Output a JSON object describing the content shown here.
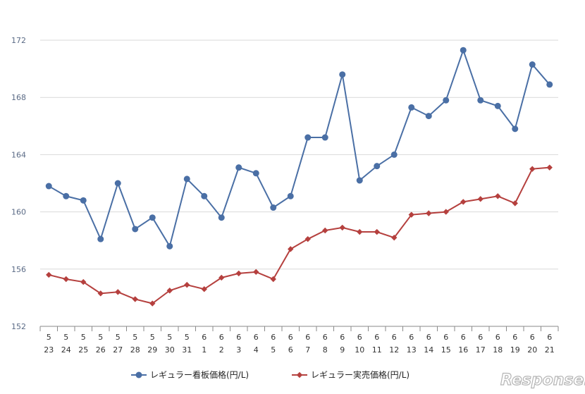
{
  "chart_data": {
    "type": "line",
    "title": "",
    "xlabel": "",
    "ylabel": "",
    "ylim": [
      152,
      172
    ],
    "yticks": [
      152,
      156,
      160,
      164,
      168,
      172
    ],
    "grid": true,
    "legend_position": "bottom",
    "x": [
      {
        "month": "5",
        "day": "23"
      },
      {
        "month": "5",
        "day": "24"
      },
      {
        "month": "5",
        "day": "25"
      },
      {
        "month": "5",
        "day": "26"
      },
      {
        "month": "5",
        "day": "27"
      },
      {
        "month": "5",
        "day": "28"
      },
      {
        "month": "5",
        "day": "29"
      },
      {
        "month": "5",
        "day": "30"
      },
      {
        "month": "5",
        "day": "31"
      },
      {
        "month": "6",
        "day": "1"
      },
      {
        "month": "6",
        "day": "2"
      },
      {
        "month": "6",
        "day": "3"
      },
      {
        "month": "6",
        "day": "4"
      },
      {
        "month": "6",
        "day": "5"
      },
      {
        "month": "6",
        "day": "6"
      },
      {
        "month": "6",
        "day": "7"
      },
      {
        "month": "6",
        "day": "8"
      },
      {
        "month": "6",
        "day": "9"
      },
      {
        "month": "6",
        "day": "10"
      },
      {
        "month": "6",
        "day": "11"
      },
      {
        "month": "6",
        "day": "12"
      },
      {
        "month": "6",
        "day": "13"
      },
      {
        "month": "6",
        "day": "14"
      },
      {
        "month": "6",
        "day": "15"
      },
      {
        "month": "6",
        "day": "16"
      },
      {
        "month": "6",
        "day": "17"
      },
      {
        "month": "6",
        "day": "18"
      },
      {
        "month": "6",
        "day": "19"
      },
      {
        "month": "6",
        "day": "20"
      },
      {
        "month": "6",
        "day": "21"
      }
    ],
    "series": [
      {
        "name": "レギュラー看板価格(円/L)",
        "color": "#4a6fa5",
        "marker": "circle",
        "values": [
          161.8,
          161.1,
          160.8,
          158.1,
          162.0,
          158.8,
          159.6,
          157.6,
          162.3,
          161.1,
          159.6,
          163.1,
          162.7,
          160.3,
          161.1,
          165.2,
          165.2,
          169.6,
          162.2,
          163.2,
          164.0,
          167.3,
          166.7,
          167.8,
          171.3,
          167.8,
          167.4,
          165.8,
          170.3,
          168.9
        ]
      },
      {
        "name": "レギュラー実売価格(円/L)",
        "color": "#b5403e",
        "marker": "diamond",
        "values": [
          155.6,
          155.3,
          155.1,
          154.3,
          154.4,
          153.9,
          153.6,
          154.5,
          154.9,
          154.6,
          155.4,
          155.7,
          155.8,
          155.3,
          157.4,
          158.1,
          158.7,
          158.9,
          158.6,
          158.6,
          158.2,
          159.8,
          159.9,
          160.0,
          160.7,
          160.9,
          161.1,
          160.6,
          163.0,
          163.1
        ]
      }
    ]
  },
  "watermark": "Response."
}
